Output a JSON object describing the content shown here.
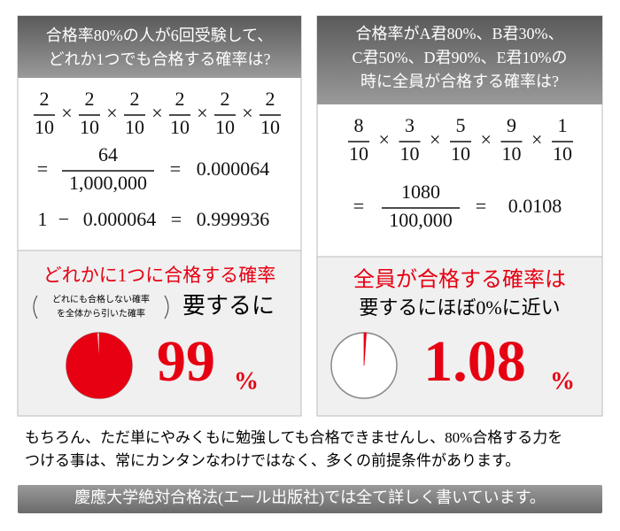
{
  "left": {
    "header": [
      "合格率80%の人が6回受験して、",
      "どれか1つでも合格する確率は?"
    ],
    "product": [
      {
        "numerator": "2",
        "denominator": "10"
      },
      {
        "numerator": "2",
        "denominator": "10"
      },
      {
        "numerator": "2",
        "denominator": "10"
      },
      {
        "numerator": "2",
        "denominator": "10"
      },
      {
        "numerator": "2",
        "denominator": "10"
      },
      {
        "numerator": "2",
        "denominator": "10"
      }
    ],
    "times": "×",
    "equals": "=",
    "minus": "−",
    "result_fraction": {
      "numerator": "64",
      "denominator": "1,000,000"
    },
    "result": "0.000064",
    "complement": {
      "one": "1",
      "subtrahend": "0.000064",
      "result": "0.999936"
    },
    "headline": "どれかに1つに合格する確率",
    "note": [
      "どれにも合格しない確率",
      "を全体から引いた確率"
    ],
    "conclusion": "要するに",
    "percent": 99,
    "percent_sign": "%"
  },
  "right": {
    "header": [
      "合格率がA君80%、B君30%、",
      "C君50%、D君90%、E君10%の",
      "時に全員が合格する確率は?"
    ],
    "product": [
      {
        "numerator": "8",
        "denominator": "10"
      },
      {
        "numerator": "3",
        "denominator": "10"
      },
      {
        "numerator": "5",
        "denominator": "10"
      },
      {
        "numerator": "9",
        "denominator": "10"
      },
      {
        "numerator": "1",
        "denominator": "10"
      }
    ],
    "times": "×",
    "equals": "=",
    "result_fraction": {
      "numerator": "1080",
      "denominator": "100,000"
    },
    "result": "0.0108",
    "headline": "全員が合格する確率は",
    "conclusion": "要するにほぼ0%に近い",
    "percent": 1.08,
    "percent_sign": "%"
  },
  "footer": {
    "text": [
      "もちろん、ただ単にやみくもに勉強しても合格できませんし、80%合格する力を",
      "つける事は、常にカンタンなわけではなく、多くの前提条件があります。"
    ],
    "banner": "慶應大学絶対合格法(エール出版社)では全て詳しく書いています。"
  }
}
